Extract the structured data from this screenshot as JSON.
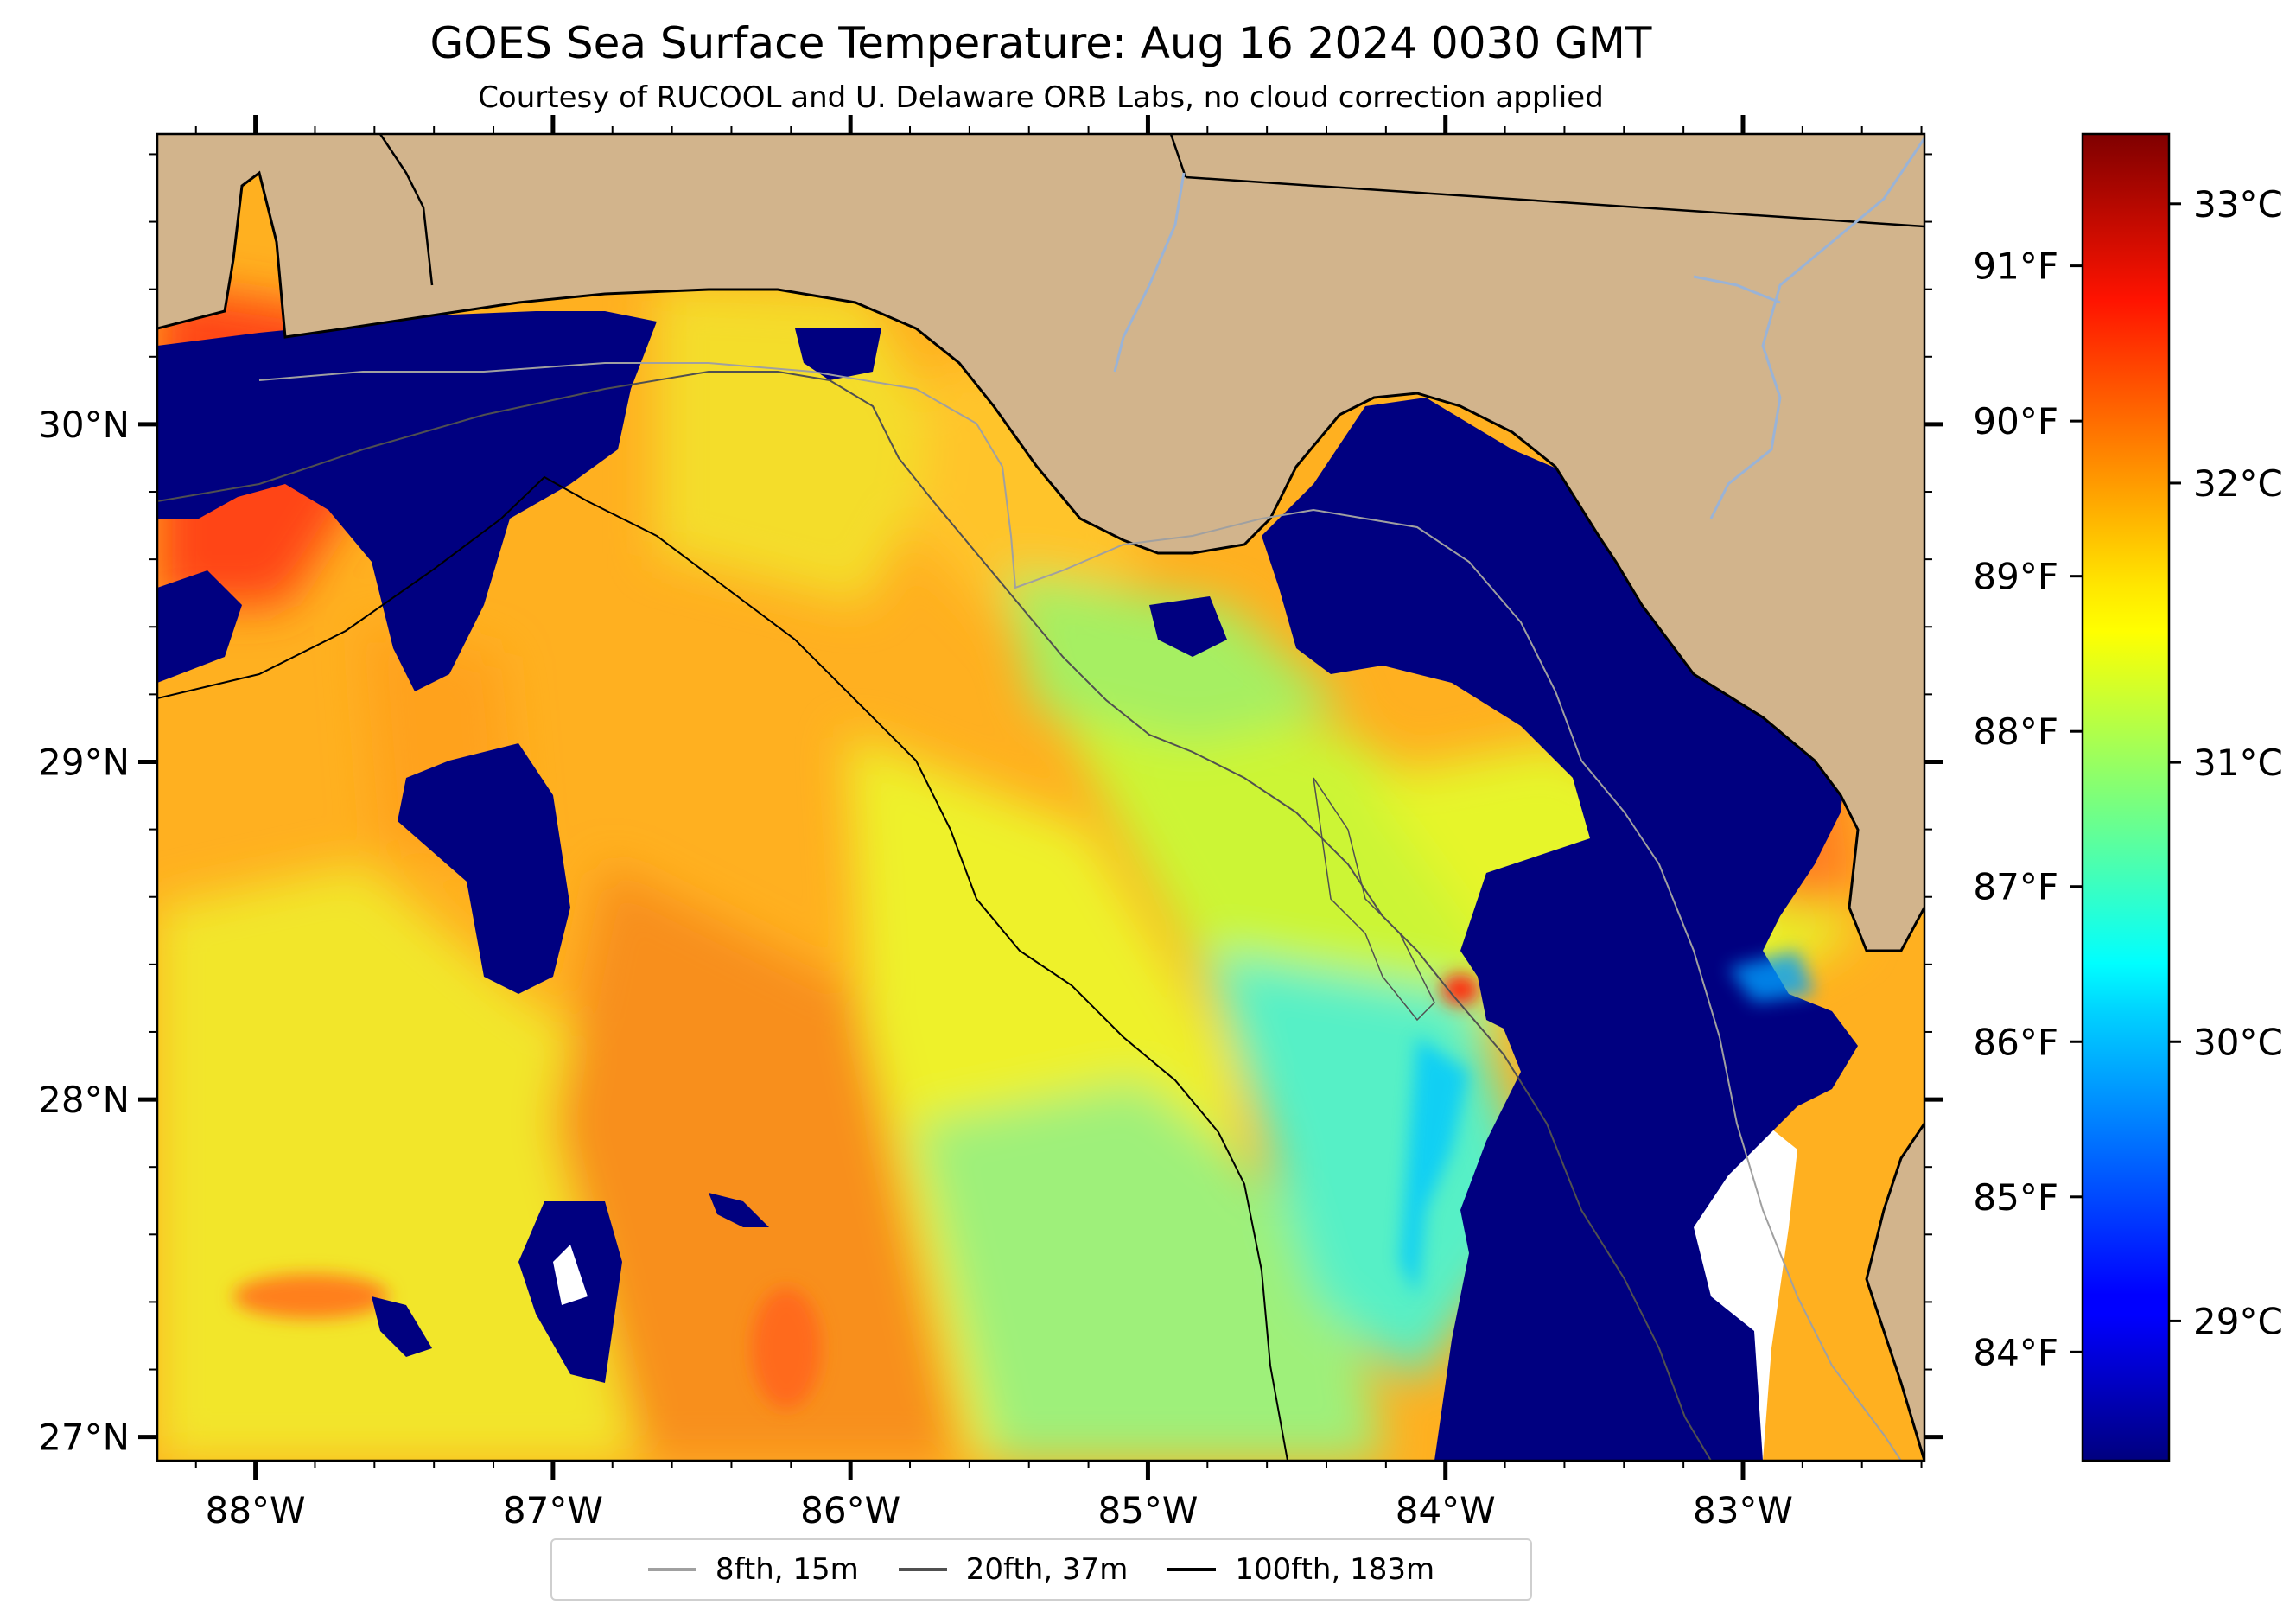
{
  "title": "GOES Sea Surface Temperature: Aug 16 2024 0030 GMT",
  "subtitle": "Courtesy of RUCOOL and U. Delaware ORB Labs, no cloud correction applied",
  "map": {
    "extent": {
      "lon_min": -88.33,
      "lon_max": -82.39,
      "lat_min": 26.93,
      "lat_max": 30.86
    },
    "lon_ticks": [
      {
        "value": -88,
        "label": "88°W"
      },
      {
        "value": -87,
        "label": "87°W"
      },
      {
        "value": -86,
        "label": "86°W"
      },
      {
        "value": -85,
        "label": "85°W"
      },
      {
        "value": -84,
        "label": "84°W"
      },
      {
        "value": -83,
        "label": "83°W"
      }
    ],
    "lat_ticks": [
      {
        "value": 30,
        "label": "30°N"
      },
      {
        "value": 29,
        "label": "29°N"
      },
      {
        "value": 28,
        "label": "28°N"
      },
      {
        "value": 27,
        "label": "27°N"
      }
    ],
    "colors": {
      "land": "#d2b48c",
      "no_data": "#ffffff",
      "coast": "#000000",
      "river": "#9ab3d6"
    }
  },
  "colorbar": {
    "colormap": "jet",
    "range_c": [
      28.5,
      33.25
    ],
    "celsius_ticks": [
      {
        "value": 33,
        "label": "33°C"
      },
      {
        "value": 32,
        "label": "32°C"
      },
      {
        "value": 31,
        "label": "31°C"
      },
      {
        "value": 30,
        "label": "30°C"
      },
      {
        "value": 29,
        "label": "29°C"
      }
    ],
    "fahrenheit_ticks": [
      {
        "value": 91,
        "label": "91°F"
      },
      {
        "value": 90,
        "label": "90°F"
      },
      {
        "value": 89,
        "label": "89°F"
      },
      {
        "value": 88,
        "label": "88°F"
      },
      {
        "value": 87,
        "label": "87°F"
      },
      {
        "value": 86,
        "label": "86°F"
      },
      {
        "value": 85,
        "label": "85°F"
      },
      {
        "value": 84,
        "label": "84°F"
      }
    ]
  },
  "legend": [
    {
      "label": "8fth, 15m",
      "color": "#a0a0a0"
    },
    {
      "label": "20fth, 37m",
      "color": "#505050"
    },
    {
      "label": "100fth, 183m",
      "color": "#000000"
    }
  ]
}
